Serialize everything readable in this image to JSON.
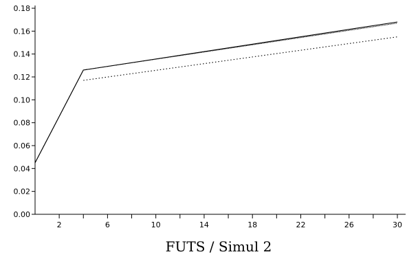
{
  "chart_data": {
    "type": "line",
    "title": "",
    "xlabel": "FUTS / Simul 2",
    "ylabel": "",
    "xlim": [
      0,
      30
    ],
    "ylim": [
      0,
      0.18
    ],
    "x_ticks": [
      2,
      6,
      10,
      14,
      18,
      22,
      26,
      30
    ],
    "x_minor_ticks": [
      4,
      8,
      12,
      16,
      20,
      24,
      28
    ],
    "y_ticks": [
      "0.00",
      "0.02",
      "0.04",
      "0.06",
      "0.08",
      "0.10",
      "0.12",
      "0.14",
      "0.16",
      "0.18"
    ],
    "grid": false,
    "series": [
      {
        "style": "solid",
        "color": "#000000",
        "x": [
          0,
          4,
          30
        ],
        "y": [
          0.045,
          0.126,
          0.168
        ]
      },
      {
        "style": "dotted-dense",
        "color": "#000000",
        "x": [
          0,
          4,
          30
        ],
        "y": [
          0.045,
          0.126,
          0.167
        ]
      },
      {
        "style": "dotted",
        "color": "#000000",
        "x": [
          4,
          30
        ],
        "y": [
          0.117,
          0.155
        ]
      }
    ]
  }
}
